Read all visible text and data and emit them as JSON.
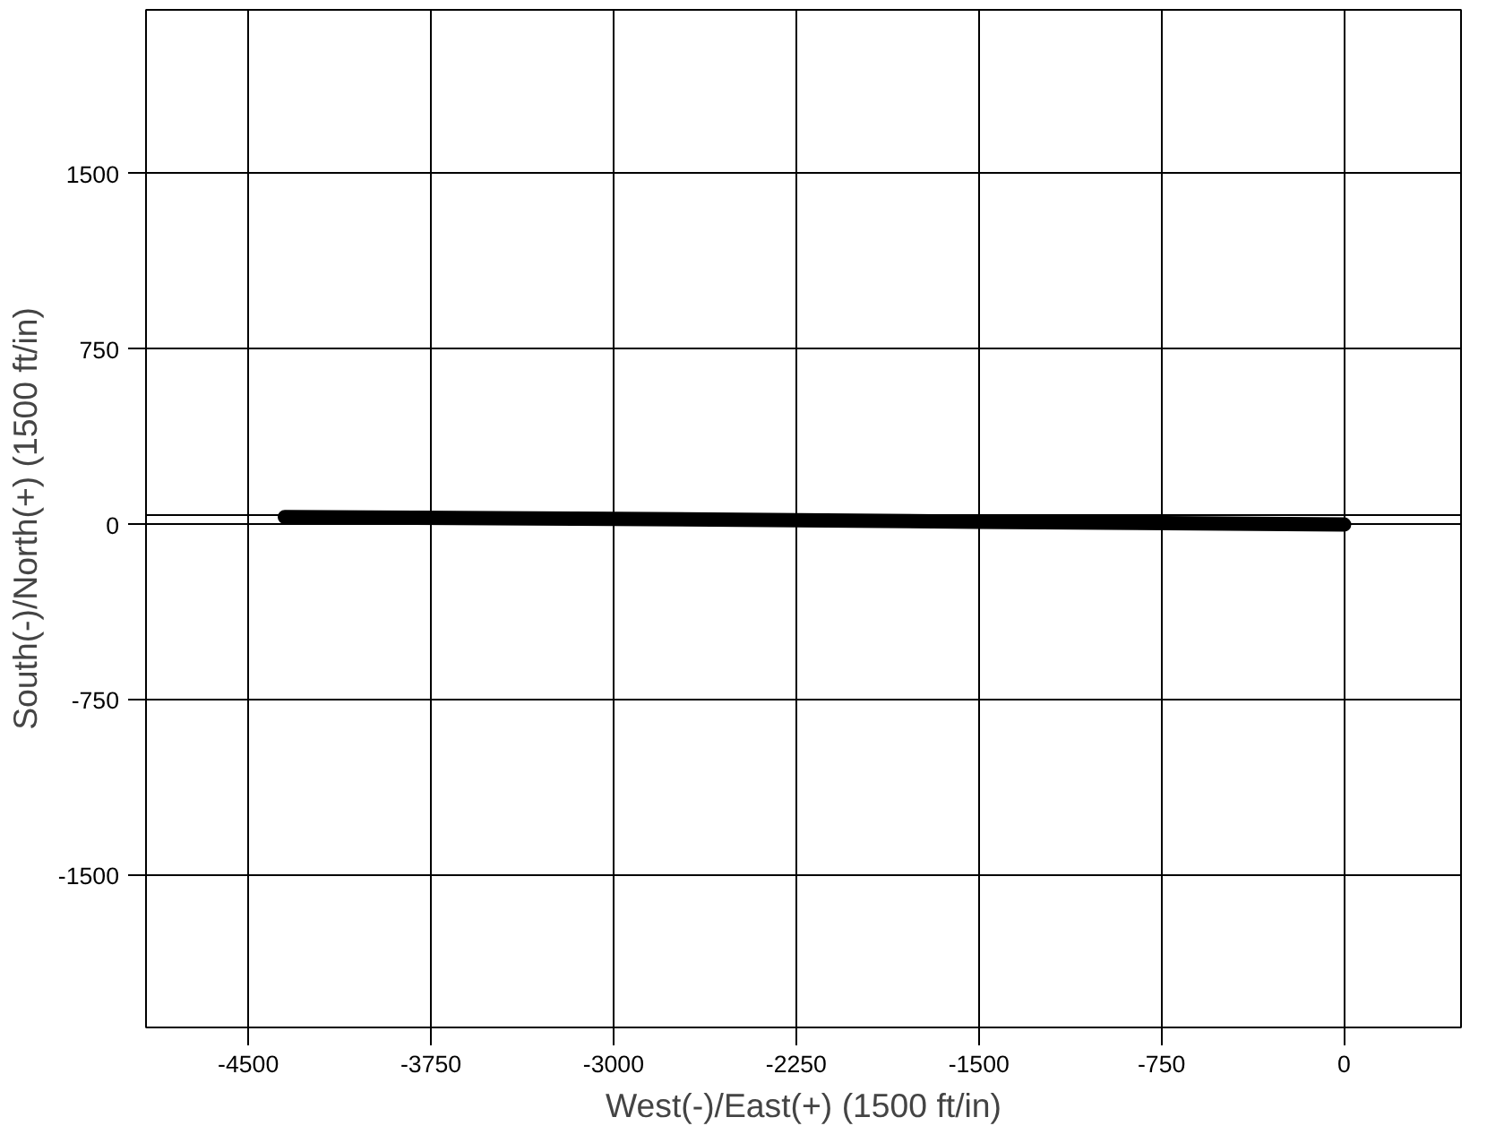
{
  "chart_data": {
    "type": "line",
    "xlabel": "West(-)/East(+) (1500 ft/in)",
    "ylabel": "South(-)/North(+) (1500 ft/in)",
    "x": [
      -4350,
      -3000,
      -1500,
      0
    ],
    "series": [
      {
        "color": "#000000",
        "values": [
          32,
          24,
          12,
          0
        ]
      }
    ],
    "xlim": [
      -4920,
      480
    ],
    "ylim": [
      -2150,
      2200
    ],
    "xticks": [
      -4500,
      -3750,
      -3000,
      -2250,
      -1500,
      -750,
      0
    ],
    "yticks": [
      -1500,
      -750,
      0,
      750,
      1500
    ],
    "ref_lines": [
      {
        "axis": "y",
        "value": 40,
        "color": "#000000"
      }
    ],
    "grid": true,
    "marker": "none",
    "line_style": "solid"
  }
}
